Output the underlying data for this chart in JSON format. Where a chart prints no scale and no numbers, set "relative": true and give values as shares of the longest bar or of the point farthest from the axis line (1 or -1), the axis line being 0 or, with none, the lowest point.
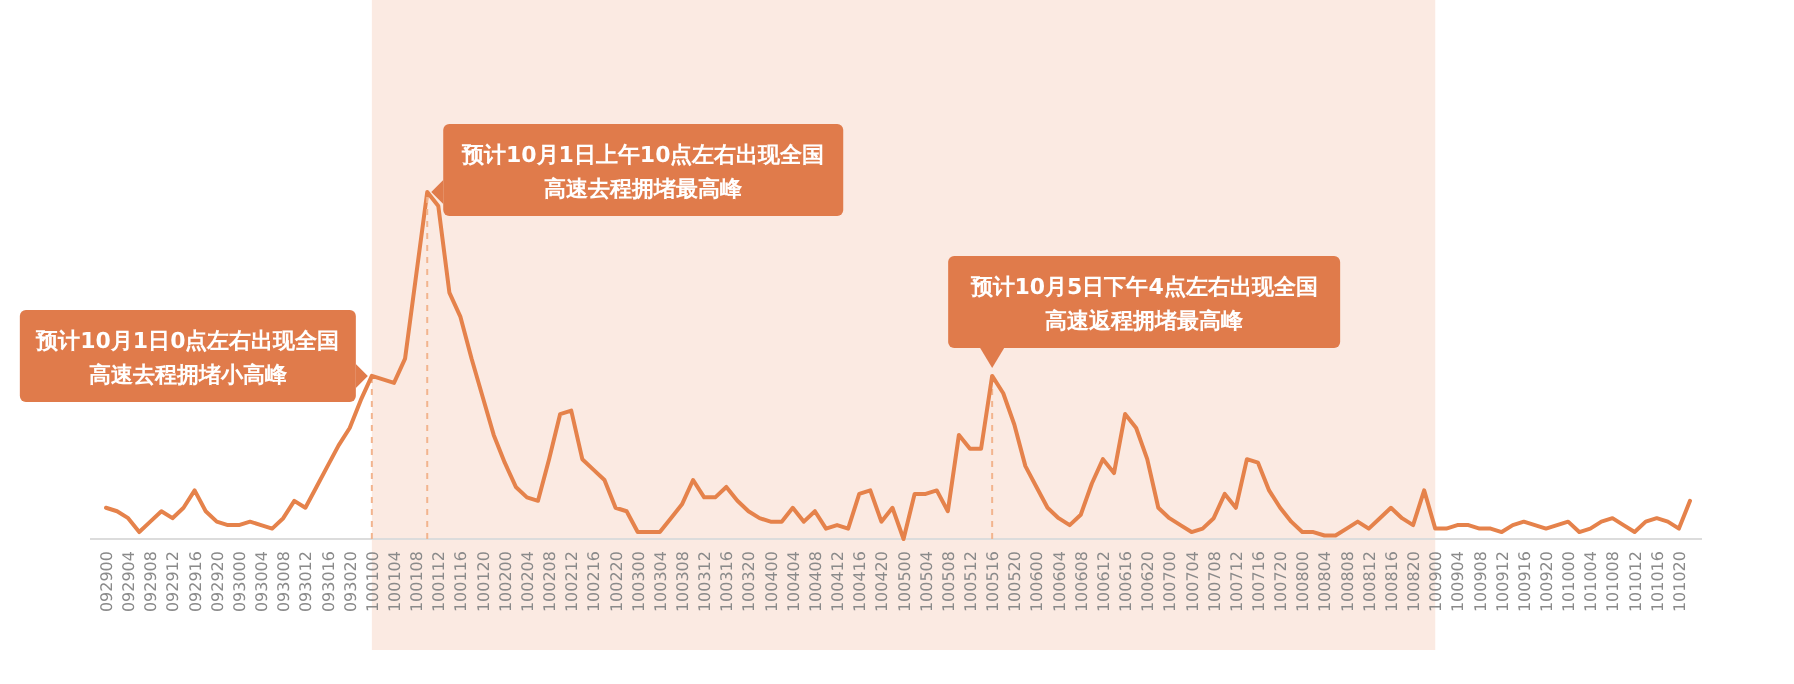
{
  "chart_data": {
    "type": "line",
    "relative": true,
    "color": "#e5824b",
    "categories": [
      "092900",
      null,
      "092904",
      null,
      "092908",
      null,
      "092912",
      null,
      "092916",
      null,
      "092920",
      null,
      "093000",
      null,
      "093004",
      null,
      "093008",
      null,
      "093012",
      null,
      "093016",
      null,
      "093020",
      null,
      "100100",
      null,
      "100104",
      null,
      "100108",
      null,
      "100112",
      null,
      "100116",
      null,
      "100120",
      null,
      "100200",
      null,
      "100204",
      null,
      "100208",
      null,
      "100212",
      null,
      "100216",
      null,
      "100220",
      null,
      "100300",
      null,
      "100304",
      null,
      "100308",
      null,
      "100312",
      null,
      "100316",
      null,
      "100320",
      null,
      "100400",
      null,
      "100404",
      null,
      "100408",
      null,
      "100412",
      null,
      "100416",
      null,
      "100420",
      null,
      "100500",
      null,
      "100504",
      null,
      "100508",
      null,
      "100512",
      null,
      "100516",
      null,
      "100520",
      null,
      "100600",
      null,
      "100604",
      null,
      "100608",
      null,
      "100612",
      null,
      "100616",
      null,
      "100620",
      null,
      "100700",
      null,
      "100704",
      null,
      "100708",
      null,
      "100712",
      null,
      "100716",
      null,
      "100720",
      null,
      "100800",
      null,
      "100804",
      null,
      "100808",
      null,
      "100812",
      null,
      "100816",
      null,
      "100820",
      null,
      "100900",
      null,
      "100904",
      null,
      "100908",
      null,
      "100912",
      null,
      "100916",
      null,
      "100920",
      null,
      "101000",
      null,
      "101004",
      null,
      "101008",
      null,
      "101012",
      null,
      "101016",
      null,
      "101020",
      null
    ],
    "values": [
      0.09,
      0.08,
      0.06,
      0.02,
      0.05,
      0.08,
      0.06,
      0.09,
      0.14,
      0.08,
      0.05,
      0.04,
      0.04,
      0.05,
      0.04,
      0.03,
      0.06,
      0.11,
      0.09,
      0.15,
      0.21,
      0.27,
      0.32,
      0.4,
      0.47,
      0.46,
      0.45,
      0.52,
      0.76,
      1.0,
      0.96,
      0.71,
      0.64,
      0.52,
      0.41,
      0.3,
      0.22,
      0.15,
      0.12,
      0.11,
      0.23,
      0.36,
      0.37,
      0.23,
      0.2,
      0.17,
      0.09,
      0.08,
      0.02,
      0.02,
      0.02,
      0.06,
      0.1,
      0.17,
      0.12,
      0.12,
      0.15,
      0.11,
      0.08,
      0.06,
      0.05,
      0.05,
      0.09,
      0.05,
      0.08,
      0.03,
      0.04,
      0.03,
      0.13,
      0.14,
      0.05,
      0.09,
      0.0,
      0.13,
      0.13,
      0.14,
      0.08,
      0.3,
      0.26,
      0.26,
      0.47,
      0.42,
      0.33,
      0.21,
      0.15,
      0.09,
      0.06,
      0.04,
      0.07,
      0.16,
      0.23,
      0.19,
      0.36,
      0.32,
      0.23,
      0.09,
      0.06,
      0.04,
      0.02,
      0.03,
      0.06,
      0.13,
      0.09,
      0.23,
      0.22,
      0.14,
      0.09,
      0.05,
      0.02,
      0.02,
      0.01,
      0.01,
      0.03,
      0.05,
      0.03,
      0.06,
      0.09,
      0.06,
      0.04,
      0.14,
      0.03,
      0.03,
      0.04,
      0.04,
      0.03,
      0.03,
      0.02,
      0.04,
      0.05,
      0.04,
      0.03,
      0.04,
      0.05,
      0.02,
      0.03,
      0.05,
      0.06,
      0.04,
      0.02,
      0.05,
      0.06,
      0.05,
      0.03,
      0.11
    ],
    "bands": [
      {
        "axis": "x",
        "from": "100100",
        "to": "100900",
        "color": "#fbeae2"
      }
    ],
    "ref_lines": [
      {
        "axis": "x",
        "value": "100100",
        "color": "#f2b48e",
        "line_style": "dashed"
      },
      {
        "axis": "x",
        "value": "100516",
        "color": "#f2b48e",
        "line_style": "dashed"
      }
    ],
    "annotations": [
      {
        "text": "预计10月1日0点左右出现全国高速去程拥堵小高峰",
        "x": "100100",
        "y": 0.47
      },
      "预计10月1日上午10点左右出现全国高速去程拥堵最高峰",
      {
        "text": "预计10月5日下午4点左右出现全国高速返程拥堵最高峰",
        "x": "100516",
        "y": 0.47
      }
    ]
  }
}
